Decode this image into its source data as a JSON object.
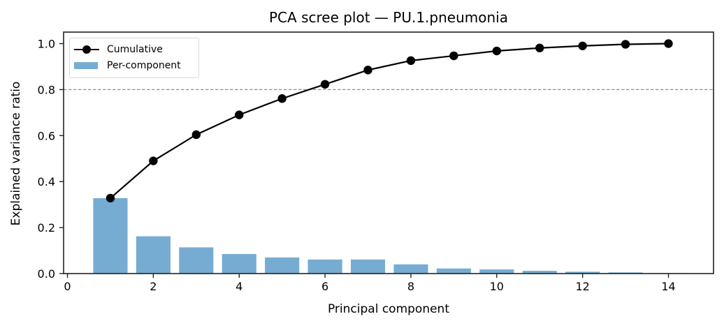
{
  "title": "PCA scree plot — PU.1.pneumonia",
  "xlabel": "Principal component",
  "ylabel": "Explained variance ratio",
  "legend": {
    "cumulative_label": "Cumulative",
    "per_component_label": "Per-component"
  },
  "colors": {
    "bar": "#77acd2",
    "line": "#000000",
    "threshold": "#8c8c8c",
    "spine": "#222222"
  },
  "chart_data": {
    "type": "bar",
    "title": "PCA scree plot — PU.1.pneumonia",
    "xlabel": "Principal component",
    "ylabel": "Explained variance ratio",
    "x": [
      1,
      2,
      3,
      4,
      5,
      6,
      7,
      8,
      9,
      10,
      11,
      12,
      13,
      14
    ],
    "series": [
      {
        "name": "Per-component",
        "type": "bar",
        "values": [
          0.328,
          0.162,
          0.114,
          0.085,
          0.07,
          0.061,
          0.061,
          0.04,
          0.022,
          0.018,
          0.012,
          0.008,
          0.005,
          0.002
        ]
      },
      {
        "name": "Cumulative",
        "type": "line",
        "marker": "circle",
        "values": [
          0.328,
          0.49,
          0.604,
          0.69,
          0.761,
          0.823,
          0.885,
          0.926,
          0.947,
          0.968,
          0.981,
          0.99,
          0.997,
          1.0
        ]
      }
    ],
    "annotations": [
      {
        "type": "hline",
        "y": 0.8,
        "style": "dashed",
        "color": "#8c8c8c"
      }
    ],
    "xlim": [
      -0.09,
      15.05
    ],
    "ylim": [
      0,
      1.05
    ],
    "xticks": [
      0,
      2,
      4,
      6,
      8,
      10,
      12,
      14
    ],
    "yticks": [
      0.0,
      0.2,
      0.4,
      0.6,
      0.8,
      1.0
    ],
    "ytick_labels": [
      "0.0",
      "0.2",
      "0.4",
      "0.6",
      "0.8",
      "1.0"
    ],
    "grid": false,
    "legend_position": "upper left"
  }
}
